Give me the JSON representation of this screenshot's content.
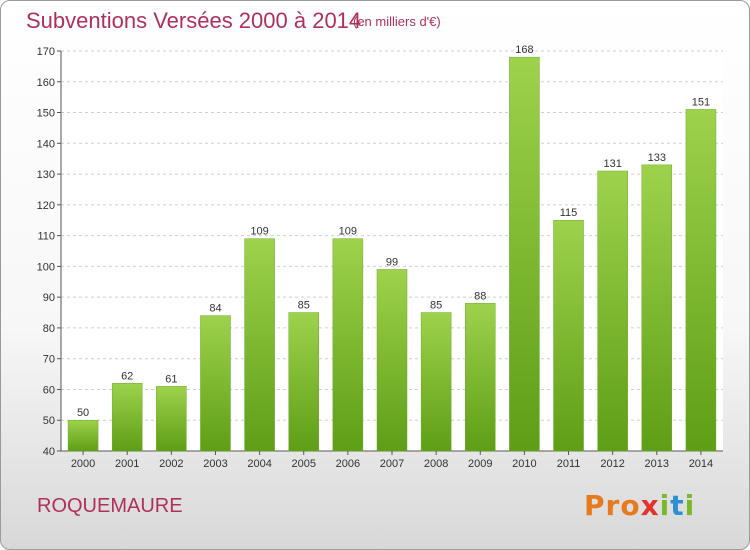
{
  "header": {
    "title": "Subventions Versées 2000 à 2014",
    "unit": "(en milliers d'€)"
  },
  "footer": {
    "commune": "ROQUEMAURE",
    "logo": [
      "Pro",
      "x",
      "iti"
    ]
  },
  "colors": {
    "title": "#b0305c",
    "bar_top": "#9ed24c",
    "bar_bottom": "#5e9e16"
  },
  "chart_data": {
    "type": "bar",
    "title": "Subventions Versées 2000 à 2014",
    "subtitle": "(en milliers d'€)",
    "xlabel": "",
    "ylabel": "",
    "ylim": [
      40,
      170
    ],
    "yticks": [
      40,
      50,
      60,
      70,
      80,
      90,
      100,
      110,
      120,
      130,
      140,
      150,
      160,
      170
    ],
    "grid": true,
    "categories": [
      "2000",
      "2001",
      "2002",
      "2003",
      "2004",
      "2005",
      "2006",
      "2007",
      "2008",
      "2009",
      "2010",
      "2011",
      "2012",
      "2013",
      "2014"
    ],
    "values": [
      50,
      62,
      61,
      84,
      109,
      85,
      109,
      99,
      85,
      88,
      168,
      115,
      131,
      133,
      151
    ]
  }
}
